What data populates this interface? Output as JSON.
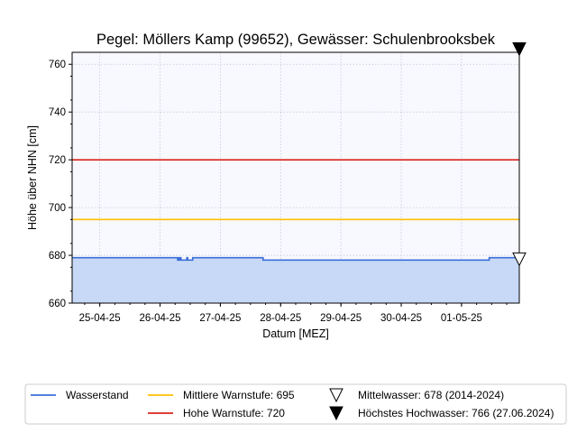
{
  "chart_data": {
    "type": "line",
    "title": "Pegel:  Möllers Kamp (99652), Gewässer:  Schulenbrooksbek",
    "xlabel": "Datum [MEZ]",
    "ylabel": "Höhe über NHN [cm]",
    "ylim": [
      660,
      765
    ],
    "yticks": [
      660,
      680,
      700,
      720,
      740,
      760
    ],
    "xlim": [
      "2025-04-24 13:00",
      "2025-05-01 23:00"
    ],
    "xticks": [
      "25-04-25",
      "26-04-25",
      "27-04-25",
      "28-04-25",
      "29-04-25",
      "30-04-25",
      "01-05-25"
    ],
    "xtick_dates": [
      "2025-04-25",
      "2025-04-26",
      "2025-04-27",
      "2025-04-28",
      "2025-04-29",
      "2025-04-30",
      "2025-05-01"
    ],
    "grid": true,
    "plot_background": "#f8f8ff",
    "legend_position": "bottom",
    "series": [
      {
        "name": "Wasserstand",
        "color": "#3a6fd8",
        "fill": "#c8d9f7",
        "points": [
          [
            "2025-04-24 13:00",
            679
          ],
          [
            "2025-04-26 07:00",
            679
          ],
          [
            "2025-04-26 07:00",
            678
          ],
          [
            "2025-04-26 07:20",
            678
          ],
          [
            "2025-04-26 07:20",
            679
          ],
          [
            "2025-04-26 07:40",
            679
          ],
          [
            "2025-04-26 07:40",
            678
          ],
          [
            "2025-04-26 08:00",
            678
          ],
          [
            "2025-04-26 08:00",
            679
          ],
          [
            "2025-04-26 08:20",
            679
          ],
          [
            "2025-04-26 08:20",
            678
          ],
          [
            "2025-04-26 10:40",
            678
          ],
          [
            "2025-04-26 10:40",
            679
          ],
          [
            "2025-04-26 11:00",
            679
          ],
          [
            "2025-04-26 11:00",
            678
          ],
          [
            "2025-04-26 13:00",
            678
          ],
          [
            "2025-04-26 13:00",
            679
          ],
          [
            "2025-04-27 17:00",
            679
          ],
          [
            "2025-04-27 17:00",
            678
          ],
          [
            "2025-05-01 11:00",
            678
          ],
          [
            "2025-05-01 11:00",
            679
          ],
          [
            "2025-05-01 23:00",
            679
          ]
        ]
      },
      {
        "name": "Mittlere Warnstufe: 695",
        "color": "#ffc000",
        "value": 695
      },
      {
        "name": "Hohe Warnstufe: 720",
        "color": "#d9251c",
        "value": 720
      },
      {
        "name": "Mittelwasser: 678 (2014-2024)",
        "marker": "triangle-down-open",
        "value": 678
      },
      {
        "name": "Höchstes Hochwasser: 766 (27.06.2024)",
        "marker": "triangle-down-filled",
        "value": 766
      }
    ]
  }
}
